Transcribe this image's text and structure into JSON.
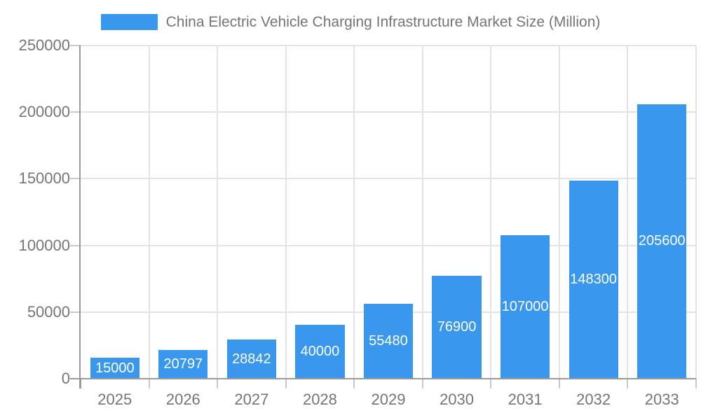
{
  "chart_data": {
    "type": "bar",
    "title": "China Electric Vehicle Charging Infrastructure Market Size (Million)",
    "categories": [
      "2025",
      "2026",
      "2027",
      "2028",
      "2029",
      "2030",
      "2031",
      "2032",
      "2033"
    ],
    "values": [
      15000,
      20797,
      28842,
      40000,
      55480,
      76900,
      107000,
      148300,
      205600
    ],
    "value_labels": [
      "15000",
      "20797",
      "28842",
      "40000",
      "55480",
      "76900",
      "107000",
      "148300",
      "205600"
    ],
    "xlabel": "",
    "ylabel": "",
    "ylim": [
      0,
      250000
    ],
    "ytick_step": 50000,
    "ytick_labels": [
      "0",
      "50000",
      "100000",
      "150000",
      "200000",
      "250000"
    ],
    "grid": true,
    "legend_position": "top",
    "series_name": "China Electric Vehicle Charging Infrastructure Market Size (Million)",
    "colors": {
      "bar": "#3998ee",
      "bar_value_text": "#ffffff",
      "axis_text": "#757575",
      "axis_line": "#9a9a9a",
      "gridline": "#e3e3e3",
      "tick": "#c9c9c9",
      "background": "#ffffff"
    }
  }
}
